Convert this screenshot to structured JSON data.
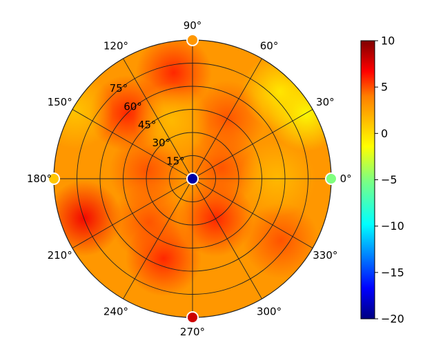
{
  "chart_data": {
    "type": "heatmap",
    "projection": "polar",
    "title": "",
    "angle_unit": "degrees",
    "angle_ticks": [
      0,
      30,
      60,
      90,
      120,
      150,
      180,
      210,
      240,
      270,
      300,
      330
    ],
    "angle_tick_labels": [
      "0°",
      "30°",
      "60°",
      "90°",
      "120°",
      "150°",
      "180°",
      "210°",
      "240°",
      "270°",
      "300°",
      "330°"
    ],
    "radial_ticks": [
      15,
      30,
      45,
      60,
      75
    ],
    "radial_tick_labels": [
      "15°",
      "30°",
      "45°",
      "60°",
      "75°"
    ],
    "radial_range": [
      0,
      90
    ],
    "grid": true,
    "colormap": "jet-like",
    "colorbar": {
      "range": [
        -20,
        10
      ],
      "ticks": [
        10,
        5,
        0,
        -5,
        -10,
        -15,
        -20
      ],
      "tick_labels": [
        "10",
        "5",
        "0",
        "−5",
        "−10",
        "−15",
        "−20"
      ]
    },
    "field_base_value": 3,
    "hotspots": [
      {
        "theta": 200,
        "r": 75,
        "value": 7
      },
      {
        "theta": 135,
        "r": 60,
        "value": 6
      },
      {
        "theta": 100,
        "r": 70,
        "value": 6
      },
      {
        "theta": 250,
        "r": 55,
        "value": 6
      },
      {
        "theta": 300,
        "r": 30,
        "value": 6
      },
      {
        "theta": 60,
        "r": 45,
        "value": 5
      },
      {
        "theta": 170,
        "r": 30,
        "value": 5
      },
      {
        "theta": 325,
        "r": 70,
        "value": 5
      },
      {
        "theta": 20,
        "r": 20,
        "value": 5
      },
      {
        "theta": 225,
        "r": 40,
        "value": 5
      }
    ],
    "coldspots": [
      {
        "theta": 30,
        "r": 85,
        "value": -1.5
      },
      {
        "theta": 45,
        "r": 80,
        "value": -0.5
      },
      {
        "theta": 150,
        "r": 88,
        "value": 1
      },
      {
        "theta": 110,
        "r": 40,
        "value": 1.5
      },
      {
        "theta": 0,
        "r": 55,
        "value": 1.5
      }
    ],
    "markers": [
      {
        "theta": 0,
        "r": 90,
        "value": -5
      },
      {
        "theta": 90,
        "r": 90,
        "value": 3
      },
      {
        "theta": 180,
        "r": 90,
        "value": 1
      },
      {
        "theta": 270,
        "r": 90,
        "value": 8
      },
      {
        "theta": 0,
        "r": 0,
        "value": -19
      }
    ]
  }
}
